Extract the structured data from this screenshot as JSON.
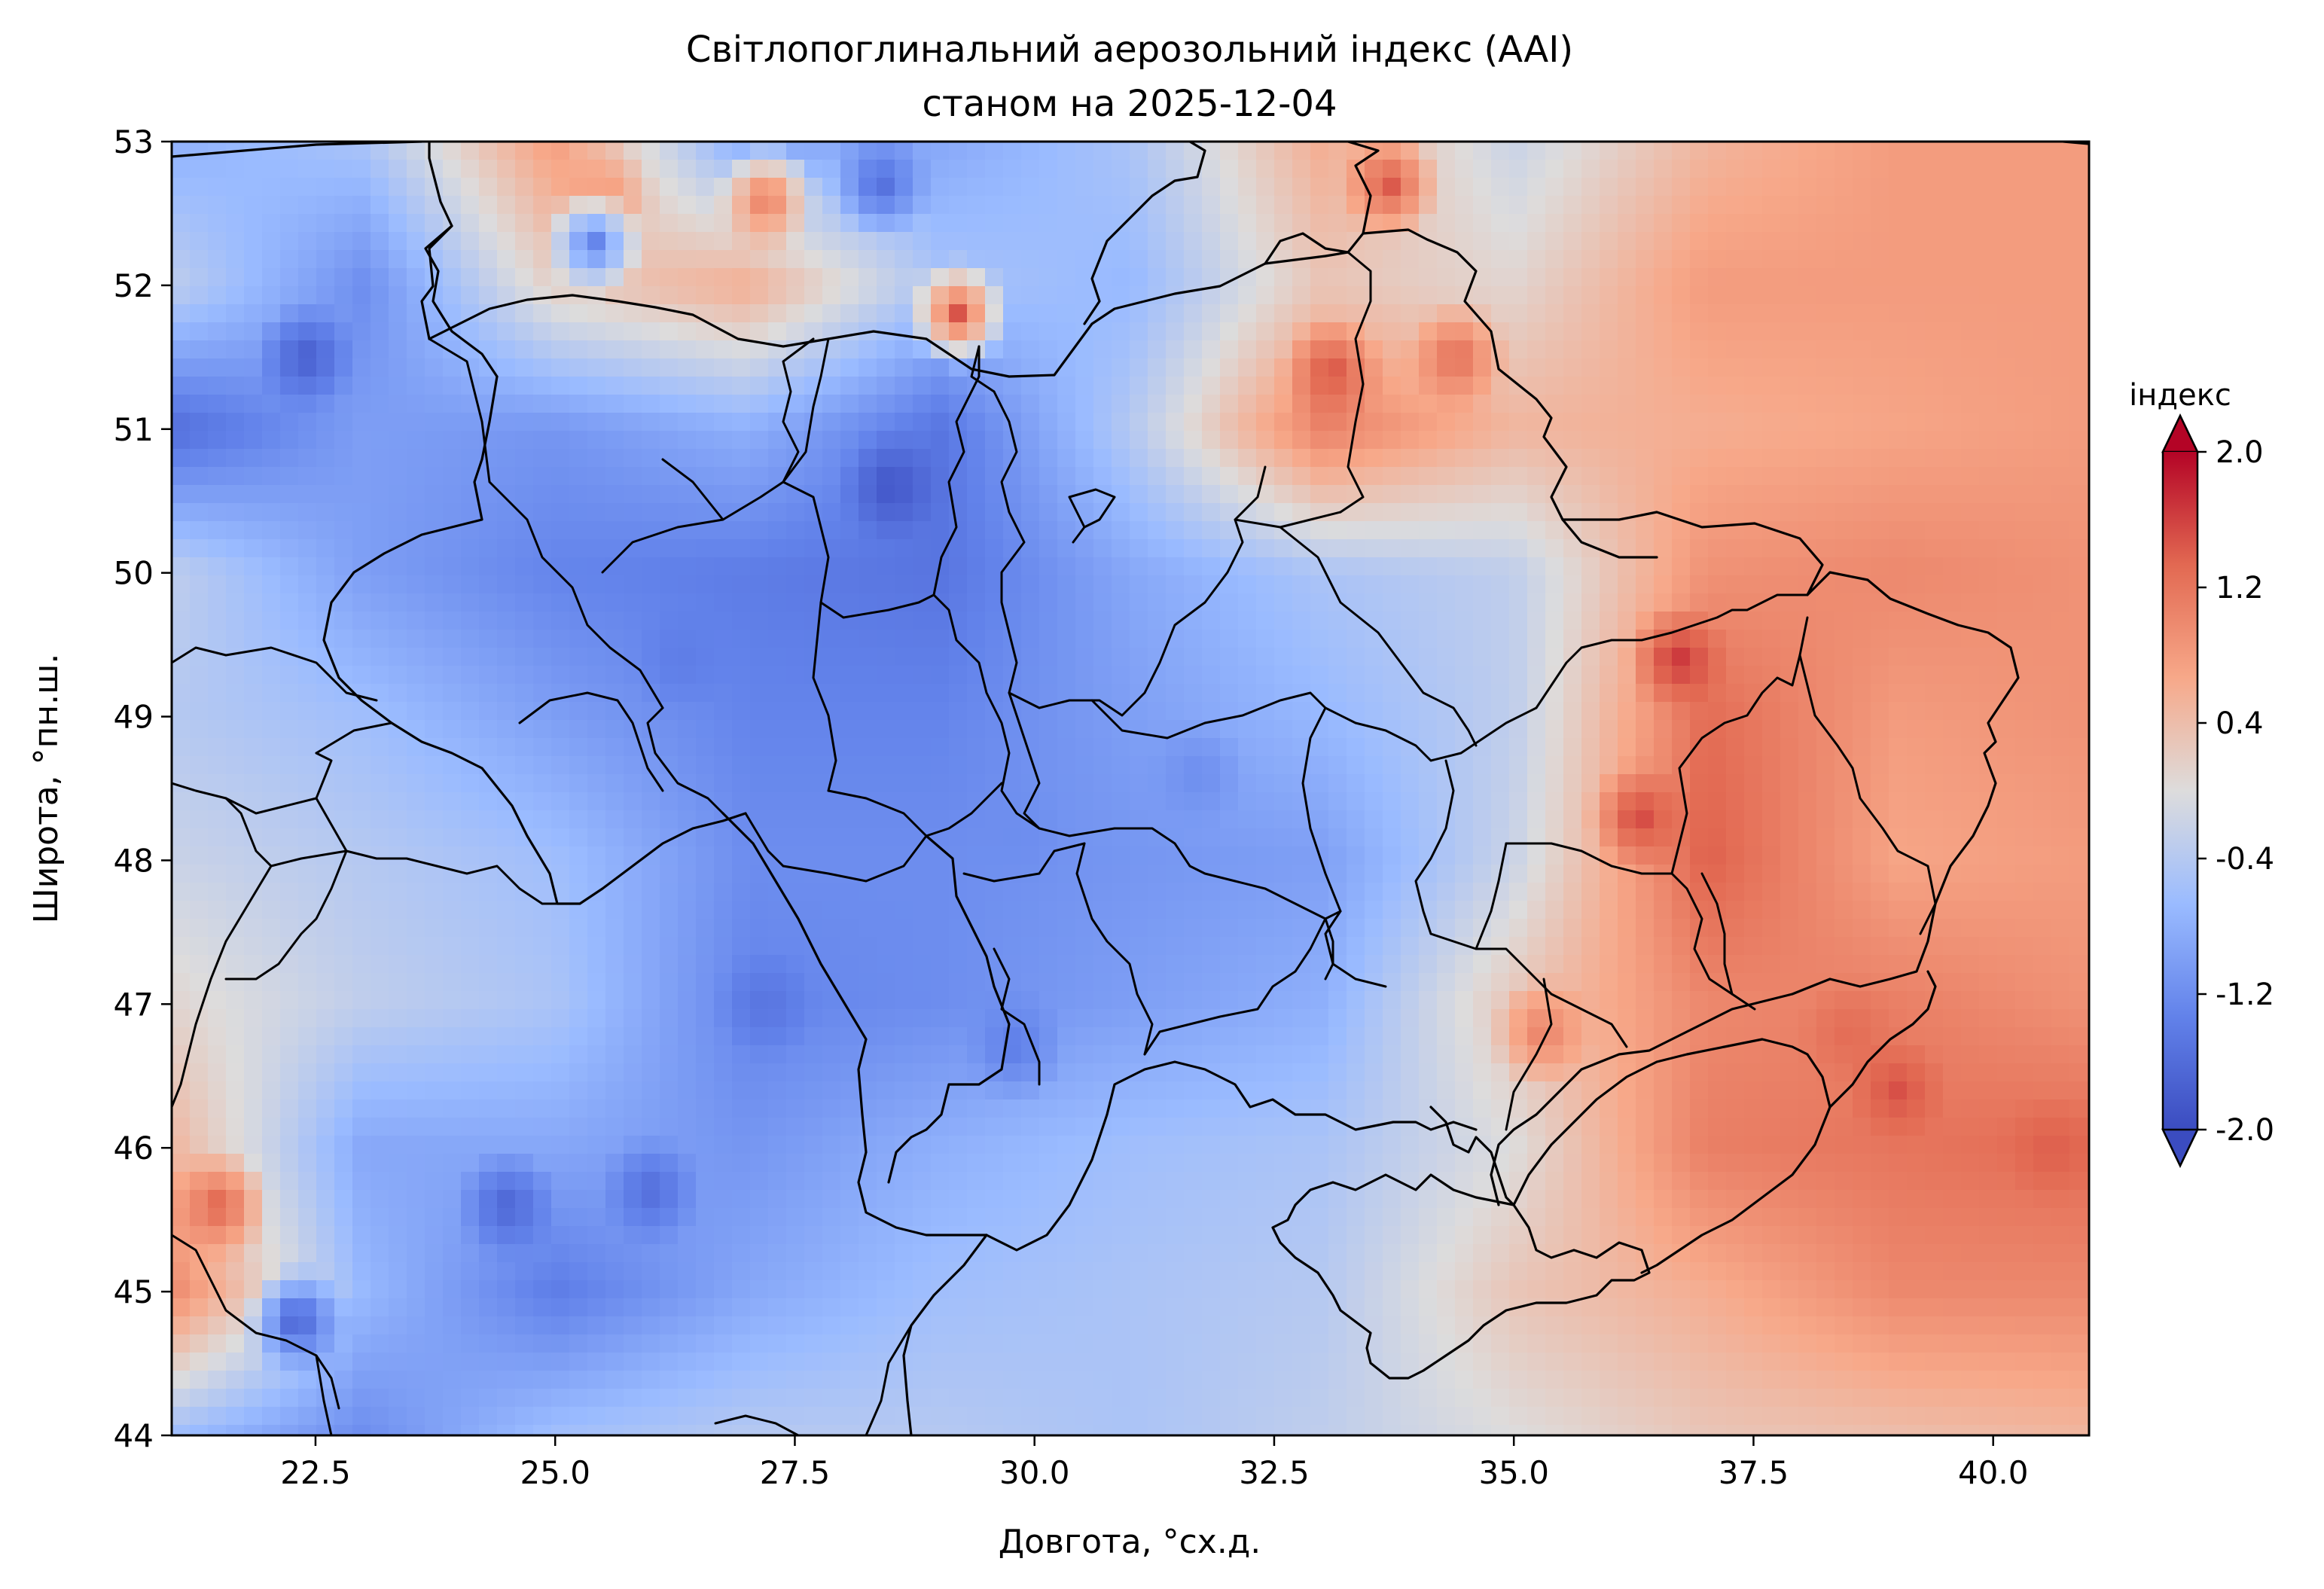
{
  "chart_data": {
    "type": "heatmap",
    "title": "Світлопоглинальний аерозольний індекс (AAI)",
    "subtitle": "станом на 2025-12-04",
    "xlabel": "Довгота, °сх.д.",
    "ylabel": "Широта, °пн.ш.",
    "xlim": [
      21,
      41
    ],
    "ylim": [
      44,
      53
    ],
    "x_ticks": [
      "22.5",
      "25.0",
      "27.5",
      "30.0",
      "32.5",
      "35.0",
      "37.5",
      "40.0"
    ],
    "x_tick_values": [
      22.5,
      25.0,
      27.5,
      30.0,
      32.5,
      35.0,
      37.5,
      40.0
    ],
    "y_ticks": [
      "44",
      "45",
      "46",
      "47",
      "48",
      "49",
      "50",
      "51",
      "52",
      "53"
    ],
    "y_tick_values": [
      44,
      45,
      46,
      47,
      48,
      49,
      50,
      51,
      52,
      53
    ],
    "colorbar": {
      "label": "індекс",
      "ticks": [
        "2.0",
        "1.2",
        "0.4",
        "-0.4",
        "-1.2",
        "-2.0"
      ],
      "tick_values": [
        2.0,
        1.2,
        0.4,
        -0.4,
        -1.2,
        -2.0
      ],
      "range": [
        -2.0,
        2.0
      ],
      "colormap": "coolwarm",
      "extend": "both",
      "colors": [
        "#3b4cc0",
        "#7396f5",
        "#b0cbfc",
        "#dddcdc",
        "#f6b89b",
        "#e36c55",
        "#b40426"
      ]
    },
    "grid_lon": [
      21,
      23,
      25,
      27,
      29,
      31,
      33,
      35,
      37,
      39,
      41
    ],
    "grid_lat": [
      53,
      52,
      51,
      50,
      49,
      48,
      47,
      46,
      45,
      44
    ],
    "grid_values": [
      [
        -0.8,
        -0.5,
        0.8,
        -0.9,
        -0.9,
        -0.5,
        0.6,
        -0.2,
        0.5,
        0.8,
        0.8
      ],
      [
        -0.3,
        -1.2,
        0.2,
        0.6,
        -0.5,
        -0.7,
        0.3,
        0.1,
        0.8,
        0.8,
        0.8
      ],
      [
        -1.6,
        -1.0,
        -1.1,
        -0.8,
        -1.5,
        -0.4,
        1.1,
        0.5,
        0.6,
        0.7,
        0.8
      ],
      [
        -0.3,
        -1.0,
        -1.3,
        -1.4,
        -1.5,
        -0.9,
        -0.5,
        -0.3,
        0.9,
        1.0,
        0.9
      ],
      [
        -0.4,
        -0.6,
        -1.0,
        -1.3,
        -1.3,
        -1.0,
        -0.7,
        -0.3,
        1.3,
        0.8,
        0.9
      ],
      [
        -0.2,
        -0.4,
        -0.6,
        -1.2,
        -1.2,
        -1.1,
        -1.0,
        -0.2,
        1.4,
        0.7,
        0.8
      ],
      [
        0.1,
        -0.3,
        -0.5,
        -1.3,
        -1.2,
        -1.0,
        -0.8,
        0.3,
        1.0,
        1.1,
        0.9
      ],
      [
        0.5,
        -0.9,
        -0.9,
        -1.1,
        -0.8,
        -0.6,
        -0.5,
        0.0,
        1.1,
        1.2,
        1.3
      ],
      [
        1.0,
        -0.7,
        -1.4,
        -0.9,
        -0.6,
        -0.5,
        -0.4,
        0.3,
        0.6,
        1.0,
        1.0
      ],
      [
        -0.6,
        -1.2,
        -0.6,
        -0.4,
        -0.4,
        -0.5,
        -0.3,
        0.0,
        0.3,
        0.4,
        0.5
      ]
    ],
    "hotspots": [
      {
        "lon": 22.3,
        "lat": 44.8,
        "value": -1.8
      },
      {
        "lon": 24.5,
        "lat": 45.6,
        "value": -1.7
      },
      {
        "lon": 21.5,
        "lat": 45.6,
        "value": 1.4
      },
      {
        "lon": 22.4,
        "lat": 51.5,
        "value": -1.8
      },
      {
        "lon": 28.5,
        "lat": 50.6,
        "value": -1.9
      },
      {
        "lon": 29.2,
        "lat": 51.8,
        "value": 1.5
      },
      {
        "lon": 27.2,
        "lat": 52.6,
        "value": 1.2
      },
      {
        "lon": 25.5,
        "lat": 52.6,
        "value": 0.9
      },
      {
        "lon": 33.7,
        "lat": 52.7,
        "value": 1.5
      },
      {
        "lon": 33.1,
        "lat": 51.4,
        "value": 1.5
      },
      {
        "lon": 34.4,
        "lat": 51.5,
        "value": 1.3
      },
      {
        "lon": 36.7,
        "lat": 49.4,
        "value": 1.7
      },
      {
        "lon": 36.3,
        "lat": 48.3,
        "value": 1.6
      },
      {
        "lon": 35.3,
        "lat": 46.8,
        "value": 1.1
      },
      {
        "lon": 38.5,
        "lat": 46.8,
        "value": 1.3
      },
      {
        "lon": 39.0,
        "lat": 46.4,
        "value": 1.5
      },
      {
        "lon": 40.6,
        "lat": 46.0,
        "value": 1.4
      },
      {
        "lon": 27.2,
        "lat": 47.0,
        "value": -1.5
      },
      {
        "lon": 29.8,
        "lat": 46.7,
        "value": -1.4
      },
      {
        "lon": 26.0,
        "lat": 45.7,
        "value": -1.6
      },
      {
        "lon": 26.3,
        "lat": 49.4,
        "value": -1.4
      },
      {
        "lon": 31.7,
        "lat": 48.6,
        "value": -1.2
      },
      {
        "lon": 29.8,
        "lat": 48.2,
        "value": -1.2
      },
      {
        "lon": 28.4,
        "lat": 52.7,
        "value": -1.6
      },
      {
        "lon": 25.4,
        "lat": 52.3,
        "value": -1.4
      }
    ]
  },
  "icons": {
    "colorbar_extend_max": "triangle-up",
    "colorbar_extend_min": "triangle-down"
  }
}
